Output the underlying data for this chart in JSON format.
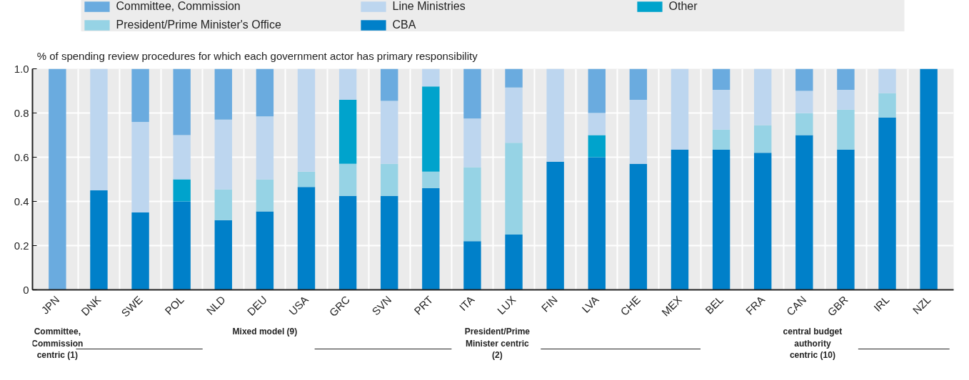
{
  "chart_data": {
    "type": "bar",
    "stacked": true,
    "ylabel": "% of spending review procedures for which each government actor has primary responsibility",
    "categories": [
      "JPN",
      "DNK",
      "SWE",
      "POL",
      "NLD",
      "DEU",
      "USA",
      "GRC",
      "SVN",
      "PRT",
      "ITA",
      "LUX",
      "FIN",
      "LVA",
      "CHE",
      "MEX",
      "BEL",
      "FRA",
      "CAN",
      "GBR",
      "IRL",
      "NZL"
    ],
    "series": [
      {
        "name": "CBA",
        "color": "#0080c9",
        "values": [
          null,
          0.45,
          0.35,
          0.4,
          0.315,
          0.355,
          0.465,
          0.425,
          0.425,
          0.46,
          0.22,
          0.25,
          0.58,
          0.6,
          0.57,
          0.635,
          0.635,
          0.62,
          0.7,
          0.635,
          0.78,
          1.0
        ]
      },
      {
        "name": "President/Prime Minister's Office",
        "color": "#96d3e5",
        "values": [
          null,
          null,
          null,
          null,
          0.14,
          0.145,
          0.07,
          0.145,
          0.145,
          0.075,
          0.335,
          0.415,
          null,
          null,
          null,
          null,
          0.09,
          0.125,
          0.1,
          0.18,
          0.11,
          null
        ]
      },
      {
        "name": "Other",
        "color": "#00a3cc",
        "values": [
          null,
          null,
          null,
          0.1,
          null,
          null,
          null,
          0.29,
          null,
          0.385,
          null,
          null,
          null,
          0.1,
          null,
          null,
          null,
          null,
          null,
          null,
          null,
          null
        ]
      },
      {
        "name": "Line Ministries",
        "color": "#bdd6ef",
        "values": [
          null,
          0.55,
          0.41,
          0.2,
          0.315,
          0.285,
          0.465,
          0.14,
          0.285,
          0.08,
          0.22,
          0.25,
          0.42,
          0.1,
          0.29,
          0.365,
          0.18,
          0.255,
          0.1,
          0.09,
          0.11,
          null
        ]
      },
      {
        "name": "Committee, Commission",
        "color": "#6aabdf",
        "values": [
          1.0,
          null,
          0.24,
          0.3,
          0.23,
          0.215,
          null,
          null,
          0.145,
          null,
          0.225,
          0.085,
          null,
          0.2,
          0.14,
          null,
          0.095,
          null,
          0.1,
          0.095,
          null,
          null
        ]
      }
    ],
    "ylim": [
      0,
      1.0
    ],
    "yticks": [
      0,
      0.2,
      0.4,
      0.6,
      0.8,
      {
        "value": 1.0,
        "label": "1.0"
      }
    ],
    "grid": true,
    "legend": "top",
    "annotations": [
      "Committee, Commission centric (1)",
      "Mixed model (9)",
      "President/Prime Minister centric (2)",
      "central budget authority centric (10)"
    ]
  }
}
